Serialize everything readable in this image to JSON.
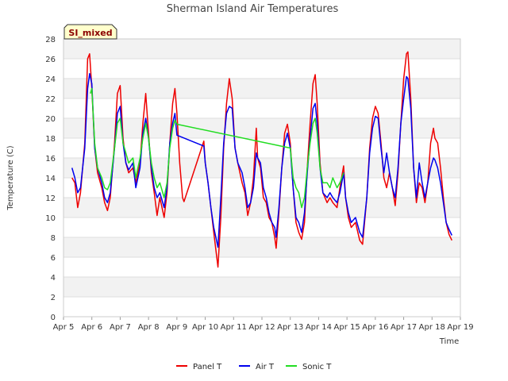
{
  "chart_data": {
    "type": "line",
    "title": "Sherman Island Air Temperatures",
    "xlabel": "Time",
    "ylabel": "Temperature (C)",
    "badge": "SI_mixed",
    "ylim": [
      0,
      28
    ],
    "yticks": [
      0,
      2,
      4,
      6,
      8,
      10,
      12,
      14,
      16,
      18,
      20,
      22,
      24,
      26,
      28
    ],
    "xlim": [
      5,
      19
    ],
    "xticks": [
      5,
      6,
      7,
      8,
      9,
      10,
      11,
      12,
      13,
      14,
      15,
      16,
      17,
      18,
      19
    ],
    "xtick_labels": [
      "Apr 5",
      "Apr 6",
      "Apr 7",
      "Apr 8",
      "Apr 9",
      "Apr 10",
      "Apr 11",
      "Apr 12",
      "Apr 13",
      "Apr 14",
      "Apr 15",
      "Apr 16",
      "Apr 17",
      "Apr 18",
      "Apr 19"
    ],
    "grid": true,
    "legend_position": "bottom",
    "series": [
      {
        "name": "Panel T",
        "color": "#ee0000",
        "points": [
          [
            5.3,
            14.0
          ],
          [
            5.4,
            13.5
          ],
          [
            5.5,
            11.0
          ],
          [
            5.6,
            12.5
          ],
          [
            5.75,
            17.5
          ],
          [
            5.85,
            26.0
          ],
          [
            5.92,
            26.5
          ],
          [
            6.0,
            23.0
          ],
          [
            6.1,
            17.0
          ],
          [
            6.2,
            14.5
          ],
          [
            6.35,
            13.0
          ],
          [
            6.45,
            11.5
          ],
          [
            6.55,
            10.7
          ],
          [
            6.65,
            12.0
          ],
          [
            6.8,
            17.5
          ],
          [
            6.9,
            22.5
          ],
          [
            7.0,
            23.3
          ],
          [
            7.1,
            18.0
          ],
          [
            7.2,
            15.5
          ],
          [
            7.3,
            14.5
          ],
          [
            7.45,
            15.0
          ],
          [
            7.55,
            13.5
          ],
          [
            7.7,
            15.5
          ],
          [
            7.8,
            19.5
          ],
          [
            7.9,
            22.5
          ],
          [
            8.0,
            18.5
          ],
          [
            8.1,
            14.5
          ],
          [
            8.2,
            12.5
          ],
          [
            8.3,
            10.2
          ],
          [
            8.4,
            12.0
          ],
          [
            8.55,
            10.0
          ],
          [
            8.65,
            12.5
          ],
          [
            8.75,
            17.5
          ],
          [
            8.85,
            21.5
          ],
          [
            8.93,
            23.0
          ],
          [
            9.0,
            20.5
          ],
          [
            9.1,
            15.5
          ],
          [
            9.2,
            12.0
          ],
          [
            9.25,
            11.6
          ],
          [
            9.95,
            17.7
          ],
          [
            10.0,
            15.5
          ],
          [
            10.1,
            13.5
          ],
          [
            10.2,
            11.0
          ],
          [
            10.3,
            8.5
          ],
          [
            10.45,
            5.0
          ],
          [
            10.55,
            10.0
          ],
          [
            10.65,
            17.0
          ],
          [
            10.75,
            21.5
          ],
          [
            10.85,
            24.0
          ],
          [
            10.95,
            22.0
          ],
          [
            11.05,
            17.0
          ],
          [
            11.15,
            15.5
          ],
          [
            11.3,
            13.5
          ],
          [
            11.4,
            12.5
          ],
          [
            11.5,
            10.2
          ],
          [
            11.6,
            11.5
          ],
          [
            11.7,
            14.0
          ],
          [
            11.8,
            19.0
          ],
          [
            11.85,
            16.0
          ],
          [
            11.95,
            15.0
          ],
          [
            12.05,
            12.0
          ],
          [
            12.15,
            11.5
          ],
          [
            12.25,
            10.0
          ],
          [
            12.35,
            9.5
          ],
          [
            12.45,
            8.0
          ],
          [
            12.5,
            6.9
          ],
          [
            12.6,
            10.5
          ],
          [
            12.7,
            15.0
          ],
          [
            12.8,
            18.5
          ],
          [
            12.9,
            19.4
          ],
          [
            13.0,
            17.5
          ],
          [
            13.1,
            13.0
          ],
          [
            13.2,
            9.5
          ],
          [
            13.3,
            8.5
          ],
          [
            13.4,
            7.8
          ],
          [
            13.5,
            9.5
          ],
          [
            13.6,
            15.0
          ],
          [
            13.7,
            19.5
          ],
          [
            13.8,
            23.5
          ],
          [
            13.88,
            24.4
          ],
          [
            13.95,
            21.5
          ],
          [
            14.05,
            15.5
          ],
          [
            14.15,
            12.5
          ],
          [
            14.3,
            11.5
          ],
          [
            14.4,
            12.0
          ],
          [
            14.5,
            11.5
          ],
          [
            14.65,
            11.0
          ],
          [
            14.75,
            13.0
          ],
          [
            14.88,
            15.2
          ],
          [
            14.95,
            12.0
          ],
          [
            15.05,
            10.0
          ],
          [
            15.15,
            9.0
          ],
          [
            15.3,
            9.5
          ],
          [
            15.45,
            7.7
          ],
          [
            15.55,
            7.3
          ],
          [
            15.7,
            12.0
          ],
          [
            15.8,
            17.0
          ],
          [
            15.9,
            20.0
          ],
          [
            16.0,
            21.2
          ],
          [
            16.1,
            20.5
          ],
          [
            16.2,
            17.5
          ],
          [
            16.3,
            14.0
          ],
          [
            16.4,
            13.0
          ],
          [
            16.5,
            14.5
          ],
          [
            16.6,
            13.0
          ],
          [
            16.7,
            11.2
          ],
          [
            16.8,
            14.5
          ],
          [
            16.9,
            19.5
          ],
          [
            17.0,
            24.0
          ],
          [
            17.1,
            26.5
          ],
          [
            17.15,
            26.7
          ],
          [
            17.25,
            22.0
          ],
          [
            17.35,
            15.0
          ],
          [
            17.45,
            11.5
          ],
          [
            17.55,
            13.5
          ],
          [
            17.65,
            13.0
          ],
          [
            17.75,
            11.5
          ],
          [
            17.85,
            13.5
          ],
          [
            17.95,
            17.5
          ],
          [
            18.05,
            19.0
          ],
          [
            18.1,
            18.0
          ],
          [
            18.2,
            17.5
          ],
          [
            18.3,
            15.0
          ],
          [
            18.4,
            12.0
          ],
          [
            18.5,
            9.5
          ],
          [
            18.6,
            8.3
          ],
          [
            18.7,
            7.7
          ]
        ]
      },
      {
        "name": "Air T",
        "color": "#0000ee",
        "points": [
          [
            5.3,
            15.0
          ],
          [
            5.4,
            14.0
          ],
          [
            5.5,
            12.5
          ],
          [
            5.6,
            13.0
          ],
          [
            5.75,
            17.0
          ],
          [
            5.85,
            23.0
          ],
          [
            5.92,
            24.5
          ],
          [
            6.0,
            23.5
          ],
          [
            6.1,
            17.0
          ],
          [
            6.2,
            15.0
          ],
          [
            6.35,
            13.5
          ],
          [
            6.45,
            12.0
          ],
          [
            6.55,
            11.5
          ],
          [
            6.65,
            12.5
          ],
          [
            6.8,
            17.0
          ],
          [
            6.9,
            20.5
          ],
          [
            7.0,
            21.2
          ],
          [
            7.1,
            17.5
          ],
          [
            7.2,
            15.5
          ],
          [
            7.3,
            14.8
          ],
          [
            7.45,
            15.5
          ],
          [
            7.55,
            13.0
          ],
          [
            7.7,
            15.0
          ],
          [
            7.8,
            18.5
          ],
          [
            7.9,
            20.0
          ],
          [
            8.0,
            18.0
          ],
          [
            8.1,
            15.0
          ],
          [
            8.2,
            13.0
          ],
          [
            8.3,
            12.0
          ],
          [
            8.4,
            12.5
          ],
          [
            8.55,
            11.0
          ],
          [
            8.65,
            13.0
          ],
          [
            8.75,
            17.5
          ],
          [
            8.85,
            19.5
          ],
          [
            8.93,
            20.5
          ],
          [
            9.0,
            18.3
          ],
          [
            9.95,
            17.2
          ],
          [
            10.0,
            15.5
          ],
          [
            10.1,
            13.5
          ],
          [
            10.2,
            11.0
          ],
          [
            10.3,
            9.0
          ],
          [
            10.45,
            7.0
          ],
          [
            10.55,
            12.0
          ],
          [
            10.65,
            17.5
          ],
          [
            10.75,
            20.5
          ],
          [
            10.85,
            21.2
          ],
          [
            10.95,
            21.0
          ],
          [
            11.05,
            17.0
          ],
          [
            11.15,
            15.5
          ],
          [
            11.3,
            14.5
          ],
          [
            11.4,
            13.0
          ],
          [
            11.5,
            11.0
          ],
          [
            11.6,
            11.5
          ],
          [
            11.7,
            13.0
          ],
          [
            11.8,
            16.5
          ],
          [
            11.85,
            16.0
          ],
          [
            11.95,
            15.5
          ],
          [
            12.05,
            13.0
          ],
          [
            12.15,
            12.0
          ],
          [
            12.25,
            10.5
          ],
          [
            12.35,
            9.5
          ],
          [
            12.45,
            9.0
          ],
          [
            12.5,
            8.0
          ],
          [
            12.6,
            11.0
          ],
          [
            12.7,
            15.0
          ],
          [
            12.8,
            17.5
          ],
          [
            12.9,
            18.5
          ],
          [
            13.0,
            17.0
          ],
          [
            13.1,
            13.0
          ],
          [
            13.2,
            10.0
          ],
          [
            13.3,
            9.5
          ],
          [
            13.4,
            8.5
          ],
          [
            13.5,
            10.5
          ],
          [
            13.6,
            14.5
          ],
          [
            13.7,
            18.0
          ],
          [
            13.8,
            21.0
          ],
          [
            13.88,
            21.5
          ],
          [
            13.95,
            19.5
          ],
          [
            14.05,
            15.0
          ],
          [
            14.15,
            12.5
          ],
          [
            14.3,
            12.0
          ],
          [
            14.4,
            12.5
          ],
          [
            14.5,
            12.0
          ],
          [
            14.65,
            11.5
          ],
          [
            14.75,
            12.5
          ],
          [
            14.88,
            14.5
          ],
          [
            14.95,
            12.0
          ],
          [
            15.05,
            10.5
          ],
          [
            15.15,
            9.5
          ],
          [
            15.3,
            10.0
          ],
          [
            15.45,
            8.5
          ],
          [
            15.55,
            8.0
          ],
          [
            15.7,
            12.0
          ],
          [
            15.8,
            16.5
          ],
          [
            15.9,
            19.0
          ],
          [
            16.0,
            20.2
          ],
          [
            16.1,
            20.0
          ],
          [
            16.2,
            17.0
          ],
          [
            16.3,
            14.5
          ],
          [
            16.4,
            16.5
          ],
          [
            16.5,
            14.5
          ],
          [
            16.6,
            13.0
          ],
          [
            16.7,
            12.0
          ],
          [
            16.8,
            15.0
          ],
          [
            16.9,
            19.5
          ],
          [
            17.0,
            22.0
          ],
          [
            17.1,
            24.2
          ],
          [
            17.15,
            24.0
          ],
          [
            17.25,
            21.0
          ],
          [
            17.35,
            15.0
          ],
          [
            17.45,
            12.0
          ],
          [
            17.55,
            15.5
          ],
          [
            17.65,
            13.5
          ],
          [
            17.75,
            12.0
          ],
          [
            17.85,
            13.5
          ],
          [
            17.95,
            15.0
          ],
          [
            18.05,
            16.0
          ],
          [
            18.1,
            15.8
          ],
          [
            18.2,
            15.0
          ],
          [
            18.3,
            13.5
          ],
          [
            18.4,
            11.5
          ],
          [
            18.5,
            9.5
          ],
          [
            18.6,
            8.8
          ],
          [
            18.7,
            8.2
          ]
        ]
      },
      {
        "name": "Sonic T",
        "color": "#22dd22",
        "points": [
          [
            5.95,
            22.5
          ],
          [
            6.0,
            23.0
          ],
          [
            6.1,
            17.5
          ],
          [
            6.2,
            15.0
          ],
          [
            6.35,
            14.0
          ],
          [
            6.45,
            13.0
          ],
          [
            6.55,
            12.8
          ],
          [
            6.65,
            13.5
          ],
          [
            6.8,
            17.0
          ],
          [
            6.9,
            19.5
          ],
          [
            7.0,
            20.0
          ],
          [
            7.1,
            17.5
          ],
          [
            7.2,
            16.5
          ],
          [
            7.3,
            15.5
          ],
          [
            7.45,
            16.0
          ],
          [
            7.55,
            14.0
          ],
          [
            7.7,
            16.0
          ],
          [
            7.8,
            18.0
          ],
          [
            7.9,
            19.5
          ],
          [
            8.0,
            18.0
          ],
          [
            8.1,
            15.5
          ],
          [
            8.2,
            14.0
          ],
          [
            8.3,
            13.0
          ],
          [
            8.4,
            13.5
          ],
          [
            8.55,
            12.0
          ],
          [
            8.65,
            13.5
          ],
          [
            8.75,
            17.0
          ],
          [
            8.85,
            19.0
          ],
          [
            8.93,
            19.8
          ],
          [
            9.0,
            19.4
          ],
          [
            13.0,
            17.0
          ],
          [
            13.1,
            14.0
          ],
          [
            13.2,
            13.0
          ],
          [
            13.3,
            12.5
          ],
          [
            13.4,
            11.0
          ],
          [
            13.5,
            12.0
          ],
          [
            13.6,
            15.0
          ],
          [
            13.7,
            17.5
          ],
          [
            13.8,
            19.5
          ],
          [
            13.88,
            20.0
          ],
          [
            13.95,
            18.5
          ],
          [
            14.05,
            15.0
          ],
          [
            14.15,
            13.5
          ],
          [
            14.3,
            13.5
          ],
          [
            14.4,
            13.0
          ],
          [
            14.5,
            14.0
          ],
          [
            14.65,
            13.0
          ],
          [
            14.75,
            13.5
          ],
          [
            14.88,
            14.5
          ]
        ]
      }
    ]
  }
}
